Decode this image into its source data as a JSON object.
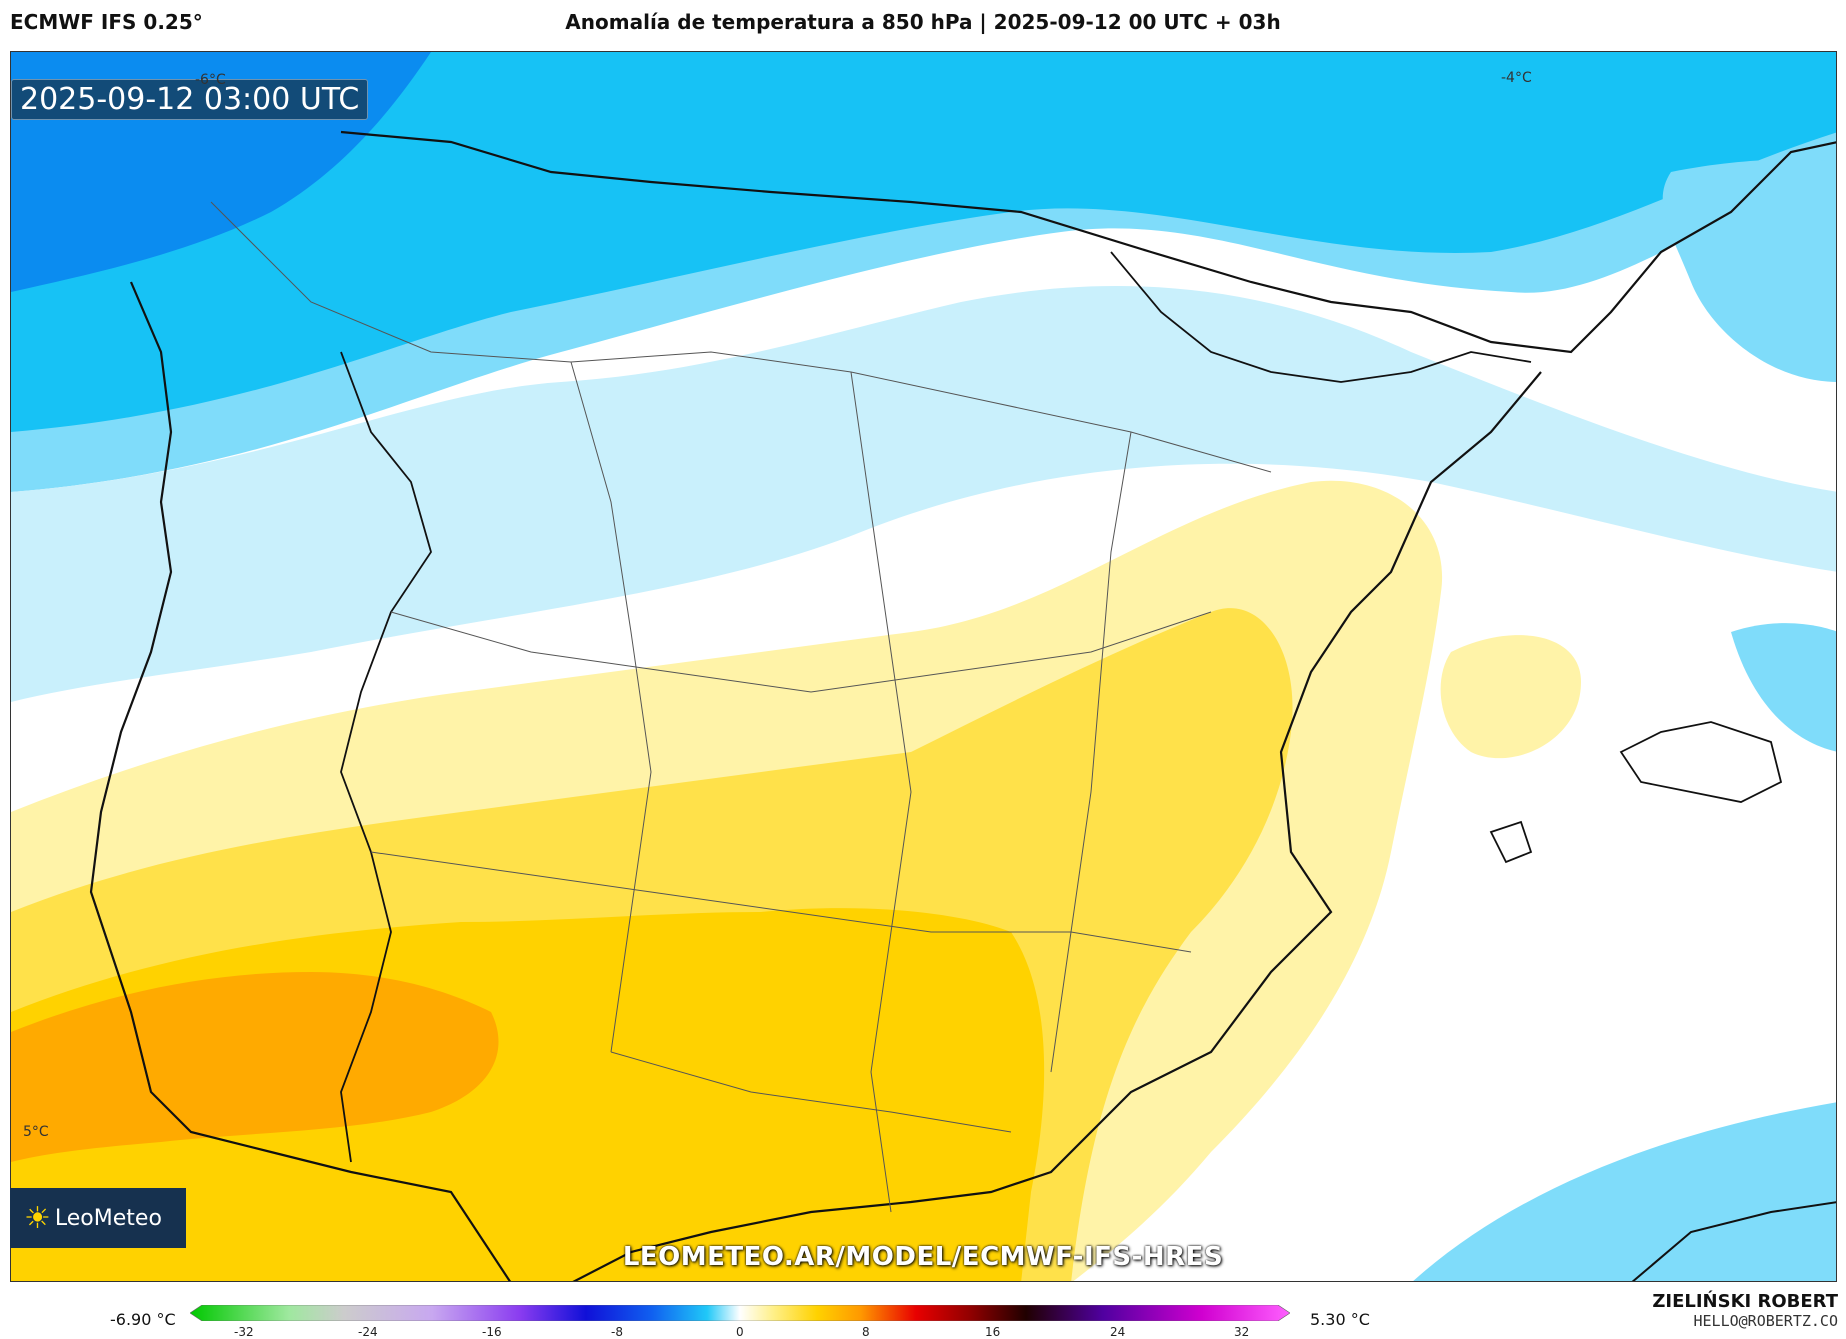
{
  "header": {
    "model": "ECMWF IFS 0.25°",
    "title": "Anomalía de temperatura a 850 hPa | 2025-09-12 00 UTC + 03h"
  },
  "map": {
    "timestamp": "2025-09-12 03:00 UTC",
    "contour_labels": [
      "-6°C",
      "-4°C",
      "5°C"
    ],
    "watermark_url": "LEOMETEO.AR/MODEL/ECMWF-IFS-HRES",
    "logo_text": "LeoMeteo",
    "colors": {
      "strong_blue": "#0b8cf0",
      "blue": "#17c2f5",
      "light_blue": "#7fdcfa",
      "pale_blue": "#c9f0fc",
      "neutral": "#ffffff",
      "pale_yellow": "#fff3a8",
      "yellow": "#ffe14a",
      "gold": "#ffd200",
      "orange": "#ffaa00"
    }
  },
  "legend": {
    "min_label": "-6.90 °C",
    "max_label": "5.30 °C",
    "ticks": [
      "-32",
      "-24",
      "-16",
      "-8",
      "0",
      "8",
      "16",
      "24",
      "32"
    ]
  },
  "credits": {
    "author": "ZIELIŃSKI ROBERT",
    "email": "HELLO@ROBERTZ.CO"
  }
}
